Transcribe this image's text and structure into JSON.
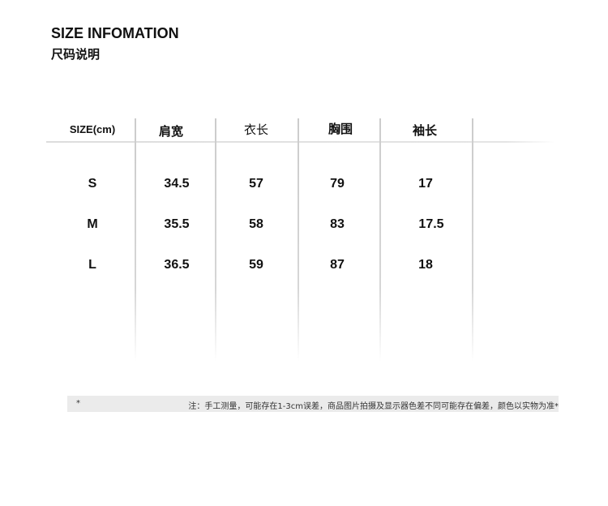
{
  "title": "SIZE INFOMATION",
  "subtitle": "尺码说明",
  "table": {
    "headers": [
      "SIZE(cm)",
      "肩宽",
      "衣长",
      "胸围",
      "袖长"
    ],
    "rows": [
      [
        "S",
        "34.5",
        "57",
        "79",
        "17"
      ],
      [
        "M",
        "35.5",
        "58",
        "83",
        "17.5"
      ],
      [
        "L",
        "36.5",
        "59",
        "87",
        "18"
      ]
    ]
  },
  "note": {
    "star": "*",
    "text": "注：手工测量，可能存在1-3cm误差，商品图片拍摄及显示器色差不同可能存在偏差，颜色以实物为准*"
  }
}
